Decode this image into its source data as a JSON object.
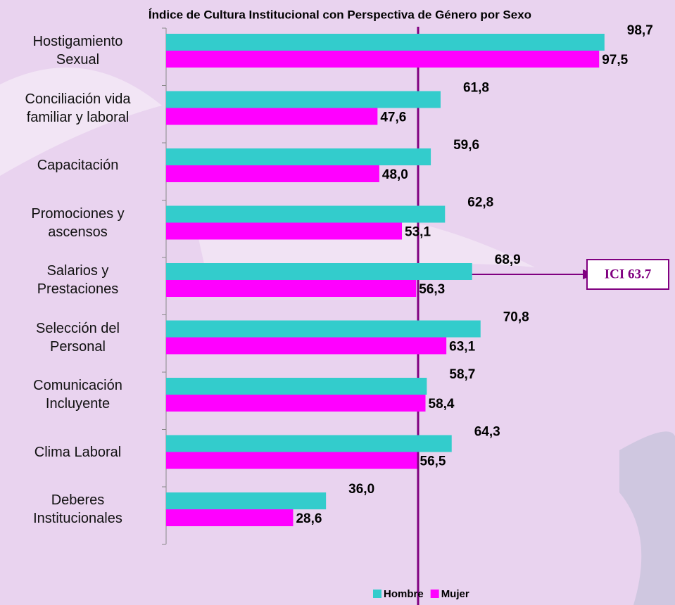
{
  "chart_data": {
    "type": "bar",
    "orientation": "horizontal",
    "title": "Índice de Cultura Institucional con Perspectiva de Género por Sexo",
    "annotation": "ICI 63.7",
    "categories": [
      "Hostigamiento\nSexual",
      "Conciliación vida\nfamiliar y laboral",
      "Capacitación",
      "Promociones y\nascensos",
      "Salarios y\nPrestaciones",
      "Selección del\nPersonal",
      "Comunicación\nIncluyente",
      "Clima Laboral",
      "Deberes\nInstitucionales"
    ],
    "series": [
      {
        "name": "Hombre",
        "color": "#33cccc",
        "values": [
          98.7,
          61.8,
          59.6,
          62.8,
          68.9,
          70.8,
          58.7,
          64.3,
          36.0
        ],
        "value_labels": [
          "98,7",
          "61,8",
          "59,6",
          "62,8",
          "68,9",
          "70,8",
          "58,7",
          "64,3",
          "36,0"
        ]
      },
      {
        "name": "Mujer",
        "color": "#ff00ff",
        "values": [
          97.5,
          47.6,
          48.0,
          53.1,
          56.3,
          63.1,
          58.4,
          56.5,
          28.6
        ],
        "value_labels": [
          "97,5",
          "47,6",
          "48,0",
          "53,1",
          "56,3",
          "63,1",
          "58,4",
          "56,5",
          "28,6"
        ]
      }
    ],
    "xlim": [
      0,
      100
    ],
    "legend": "bottom"
  }
}
